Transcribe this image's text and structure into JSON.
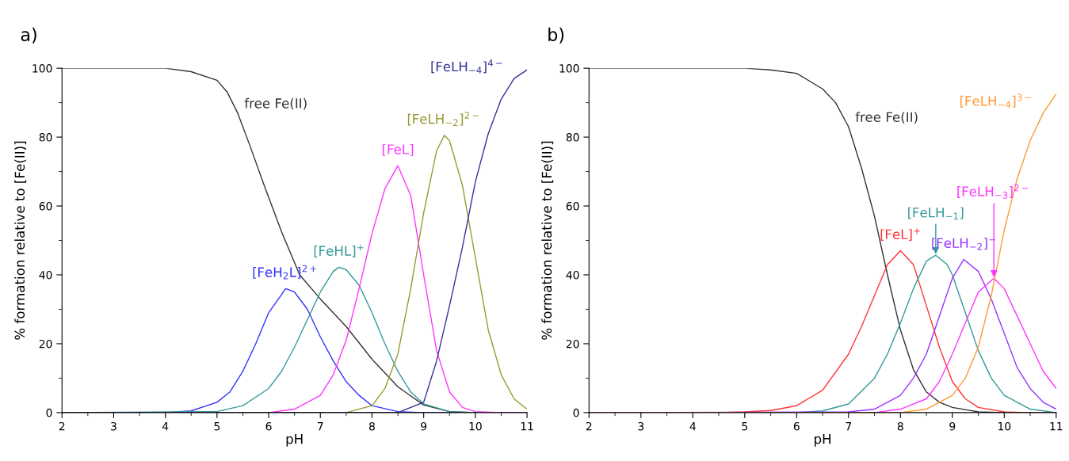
{
  "chart_data": [
    {
      "type": "line",
      "title": "a)",
      "xlabel": "pH",
      "ylabel": "% formation relative to [Fe(II)]",
      "xlim": [
        2,
        11
      ],
      "ylim": [
        0,
        100
      ],
      "xticks": [
        2,
        3,
        4,
        5,
        6,
        7,
        8,
        9,
        10,
        11
      ],
      "yticks": [
        0,
        20,
        40,
        60,
        80,
        100
      ],
      "grid": false,
      "legend": false,
      "series": [
        {
          "name": "free Fe(II)",
          "color": "#333333",
          "x": [
            2,
            4,
            4.5,
            5,
            5.2,
            5.4,
            5.65,
            5.9,
            6.25,
            6.6,
            7,
            7.5,
            8,
            8.5,
            9,
            9.5,
            10,
            11
          ],
          "values": [
            100,
            100,
            99,
            96.5,
            93,
            87,
            77,
            66.5,
            52.5,
            40,
            33,
            25,
            15.5,
            7.5,
            2.2,
            0.3,
            0,
            0
          ]
        },
        {
          "name": "[FeH$_{2}$L]$^{2+}$",
          "color": "#3333ff",
          "x": [
            2,
            4,
            4.5,
            5,
            5.25,
            5.5,
            5.75,
            6,
            6.33,
            6.5,
            6.75,
            7,
            7.25,
            7.5,
            7.75,
            8,
            8.5,
            9,
            11
          ],
          "values": [
            0,
            0,
            0.5,
            3,
            6,
            12,
            20,
            29,
            36,
            35,
            30,
            22,
            15,
            9,
            5,
            2,
            0.3,
            0,
            0
          ]
        },
        {
          "name": "[FeHL]$^{+}$",
          "color": "#339999",
          "x": [
            2,
            5,
            5.5,
            6,
            6.25,
            6.5,
            6.75,
            7,
            7.25,
            7.36,
            7.5,
            7.75,
            8,
            8.25,
            8.5,
            8.75,
            9,
            9.5,
            10,
            11
          ],
          "values": [
            0,
            0.3,
            2,
            7,
            12,
            19,
            27,
            35,
            41,
            42.2,
            41.5,
            37,
            29,
            20,
            12,
            6,
            2.5,
            0.3,
            0,
            0
          ]
        },
        {
          "name": "[FeL]",
          "color": "#ff33ff",
          "x": [
            2,
            6,
            6.5,
            7,
            7.25,
            7.5,
            7.75,
            8,
            8.25,
            8.5,
            8.75,
            9,
            9.25,
            9.5,
            9.75,
            10,
            10.5,
            11
          ],
          "values": [
            0,
            0,
            1,
            5,
            11,
            21,
            36,
            52,
            65,
            71.7,
            63,
            40,
            18,
            6,
            1.5,
            0.3,
            0,
            0
          ]
        },
        {
          "name": "[FeLH$_{−2}$]$^{2−}$",
          "color": "#999933",
          "x": [
            2,
            7.5,
            8,
            8.25,
            8.5,
            8.75,
            9,
            9.25,
            9.4,
            9.5,
            9.75,
            10,
            10.25,
            10.5,
            10.75,
            11
          ],
          "values": [
            0,
            0,
            2,
            7,
            17,
            36,
            58,
            76,
            80.5,
            79,
            66,
            45,
            24,
            11,
            4,
            1
          ]
        },
        {
          "name": "[FeLH$_{−4}$]$^{4−}$",
          "color": "#333399",
          "x": [
            2,
            8.5,
            9,
            9.25,
            9.5,
            9.75,
            10,
            10.25,
            10.5,
            10.75,
            11
          ],
          "values": [
            0,
            0,
            3,
            15,
            31,
            48,
            67,
            81,
            91,
            97,
            99.5
          ]
        }
      ]
    },
    {
      "type": "line",
      "title": "b)",
      "xlabel": "pH",
      "ylabel": "% formation relative to [Fe(II)]",
      "xlim": [
        2,
        11
      ],
      "ylim": [
        0,
        100
      ],
      "xticks": [
        2,
        3,
        4,
        5,
        6,
        7,
        8,
        9,
        10,
        11
      ],
      "yticks": [
        0,
        20,
        40,
        60,
        80,
        100
      ],
      "grid": false,
      "legend": false,
      "series": [
        {
          "name": "free Fe(II)",
          "color": "#333333",
          "x": [
            2,
            5,
            5.5,
            6,
            6.5,
            6.75,
            7,
            7.25,
            7.5,
            7.75,
            8,
            8.25,
            8.5,
            8.75,
            9,
            9.5,
            10,
            11
          ],
          "values": [
            100,
            100,
            99.5,
            98.5,
            94,
            90,
            83,
            71,
            57,
            40,
            24,
            12.5,
            6,
            3,
            1.5,
            0.2,
            0,
            0
          ]
        },
        {
          "name": "[FeL]$^{+}$",
          "color": "#ff3333",
          "x": [
            2,
            4.5,
            5,
            5.5,
            6,
            6.5,
            7,
            7.25,
            7.5,
            7.75,
            8,
            8.25,
            8.5,
            8.75,
            9,
            9.25,
            9.5,
            10,
            10.5,
            11
          ],
          "values": [
            0,
            0,
            0.2,
            0.6,
            2,
            6.5,
            17,
            25,
            34,
            43,
            47,
            43,
            31,
            19,
            9,
            4,
            1.5,
            0.2,
            0,
            0
          ]
        },
        {
          "name": "[FeLH$_{−1}$]",
          "color": "#339999",
          "x": [
            2,
            6,
            6.5,
            7,
            7.5,
            7.75,
            8,
            8.25,
            8.5,
            8.68,
            8.9,
            9,
            9.25,
            9.5,
            9.75,
            10,
            10.5,
            11
          ],
          "values": [
            0,
            0,
            0.5,
            2.5,
            10,
            17,
            26,
            36,
            44,
            45.7,
            43,
            40,
            29,
            18,
            10,
            5,
            1,
            0
          ]
        },
        {
          "name": "[FeLH$_{−2}$]$^{−}$",
          "color": "#9933ff",
          "x": [
            2,
            7,
            7.5,
            8,
            8.25,
            8.5,
            8.75,
            9,
            9.22,
            9.5,
            9.75,
            10,
            10.25,
            10.5,
            10.75,
            11
          ],
          "values": [
            0,
            0.2,
            1,
            5,
            10,
            17,
            28,
            39,
            44.5,
            41,
            33,
            23,
            13,
            7,
            3,
            1
          ]
        },
        {
          "name": "[FeLH$_{−3}$]$^{2−}$",
          "color": "#ff33ff",
          "x": [
            2,
            7.5,
            8,
            8.5,
            8.75,
            9,
            9.25,
            9.5,
            9.8,
            10,
            10.25,
            10.5,
            10.75,
            11
          ],
          "values": [
            0,
            0,
            1,
            4,
            9,
            17,
            26,
            35,
            39,
            36,
            28,
            20,
            12,
            7
          ]
        },
        {
          "name": "[FeLH$_{−4}$]$^{3−}$",
          "color": "#ff9933",
          "x": [
            2,
            8,
            8.5,
            9,
            9.25,
            9.5,
            9.75,
            10,
            10.25,
            10.5,
            10.75,
            11
          ],
          "values": [
            0,
            0,
            1,
            5,
            10,
            19,
            34,
            53,
            68,
            79,
            87,
            92.5
          ]
        }
      ]
    }
  ]
}
